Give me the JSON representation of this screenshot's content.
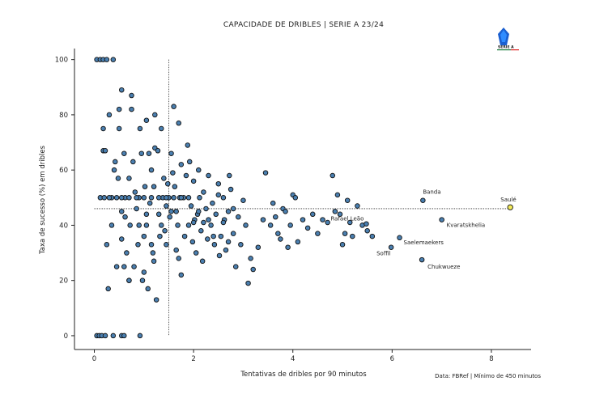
{
  "chart_data": {
    "type": "scatter",
    "title": "CAPACIDADE DE DRIBLES | SERIE A 23/24",
    "xlabel": "Tentativas de dribles por 90 minutos",
    "ylabel": "Taxa de sucesso (%) em dribles",
    "xlim": [
      -0.4,
      8.8
    ],
    "ylim": [
      -5,
      104
    ],
    "xticks": [
      0,
      2,
      4,
      6,
      8
    ],
    "yticks": [
      0,
      20,
      40,
      60,
      80,
      100
    ],
    "reference_lines": {
      "x": 1.5,
      "y": 46
    },
    "highlight": {
      "name": "Saulé",
      "x": 8.38,
      "y": 46.5
    },
    "annotated": [
      {
        "name": "Banda",
        "x": 6.62,
        "y": 49
      },
      {
        "name": "Saulé",
        "x": 8.38,
        "y": 46.5
      },
      {
        "name": "Kvaratskhelia",
        "x": 7.0,
        "y": 42
      },
      {
        "name": "Rafael Leão",
        "x": 5.48,
        "y": 40.5
      },
      {
        "name": "Saelemaekers",
        "x": 6.15,
        "y": 35.5
      },
      {
        "name": "Soffil",
        "x": 5.98,
        "y": 32
      },
      {
        "name": "Chukwueze",
        "x": 6.6,
        "y": 27.5
      }
    ],
    "points": [
      [
        0.05,
        100
      ],
      [
        0.12,
        100
      ],
      [
        0.18,
        100
      ],
      [
        0.25,
        100
      ],
      [
        0.38,
        100
      ],
      [
        0.05,
        0
      ],
      [
        0.1,
        0
      ],
      [
        0.15,
        0
      ],
      [
        0.22,
        0
      ],
      [
        0.38,
        0
      ],
      [
        0.55,
        0
      ],
      [
        0.6,
        0
      ],
      [
        0.92,
        0
      ],
      [
        0.28,
        17
      ],
      [
        0.35,
        40
      ],
      [
        0.35,
        50
      ],
      [
        0.3,
        80
      ],
      [
        0.5,
        82
      ],
      [
        0.45,
        25
      ],
      [
        0.55,
        35
      ],
      [
        0.12,
        50
      ],
      [
        0.18,
        67
      ],
      [
        0.18,
        75
      ],
      [
        0.22,
        67
      ],
      [
        0.25,
        33
      ],
      [
        0.4,
        60
      ],
      [
        0.42,
        63
      ],
      [
        0.48,
        57
      ],
      [
        0.5,
        75
      ],
      [
        0.55,
        45
      ],
      [
        0.55,
        89
      ],
      [
        0.6,
        66
      ],
      [
        0.62,
        50
      ],
      [
        0.62,
        43
      ],
      [
        0.65,
        30
      ],
      [
        0.7,
        20
      ],
      [
        0.7,
        57
      ],
      [
        0.72,
        40
      ],
      [
        0.75,
        82
      ],
      [
        0.75,
        87
      ],
      [
        0.78,
        63
      ],
      [
        0.8,
        25
      ],
      [
        0.82,
        52
      ],
      [
        0.85,
        46
      ],
      [
        0.88,
        33
      ],
      [
        0.9,
        50
      ],
      [
        0.92,
        75
      ],
      [
        0.95,
        66
      ],
      [
        0.97,
        20
      ],
      [
        1.0,
        36
      ],
      [
        1.02,
        54
      ],
      [
        1.05,
        78
      ],
      [
        1.05,
        44
      ],
      [
        1.08,
        17
      ],
      [
        1.1,
        66
      ],
      [
        1.12,
        48
      ],
      [
        1.15,
        60
      ],
      [
        1.18,
        30
      ],
      [
        1.2,
        54
      ],
      [
        1.22,
        80
      ],
      [
        1.22,
        68
      ],
      [
        1.25,
        13
      ],
      [
        1.28,
        67
      ],
      [
        1.3,
        44
      ],
      [
        1.32,
        36
      ],
      [
        1.35,
        75
      ],
      [
        1.38,
        50
      ],
      [
        1.4,
        57
      ],
      [
        1.42,
        38
      ],
      [
        1.45,
        47
      ],
      [
        1.48,
        55
      ],
      [
        1.5,
        50
      ],
      [
        1.52,
        43
      ],
      [
        1.55,
        66
      ],
      [
        1.58,
        59
      ],
      [
        1.6,
        83
      ],
      [
        1.62,
        54
      ],
      [
        1.65,
        45
      ],
      [
        1.68,
        40
      ],
      [
        1.7,
        77
      ],
      [
        1.72,
        50
      ],
      [
        1.75,
        62
      ],
      [
        1.75,
        22
      ],
      [
        1.8,
        50
      ],
      [
        1.82,
        36
      ],
      [
        1.85,
        58
      ],
      [
        1.88,
        69
      ],
      [
        1.9,
        40
      ],
      [
        1.92,
        63
      ],
      [
        1.95,
        47
      ],
      [
        1.98,
        34
      ],
      [
        2.0,
        56
      ],
      [
        2.02,
        42
      ],
      [
        2.05,
        30
      ],
      [
        2.08,
        44
      ],
      [
        2.1,
        60
      ],
      [
        2.12,
        50
      ],
      [
        2.15,
        38
      ],
      [
        2.18,
        27
      ],
      [
        2.2,
        52
      ],
      [
        2.25,
        46
      ],
      [
        2.28,
        35
      ],
      [
        2.3,
        58
      ],
      [
        2.35,
        40
      ],
      [
        2.38,
        48
      ],
      [
        2.42,
        33
      ],
      [
        2.45,
        44
      ],
      [
        2.5,
        55
      ],
      [
        2.52,
        29
      ],
      [
        2.55,
        36
      ],
      [
        2.6,
        50
      ],
      [
        2.62,
        42
      ],
      [
        2.65,
        31
      ],
      [
        2.7,
        45
      ],
      [
        2.72,
        58
      ],
      [
        2.75,
        53
      ],
      [
        2.8,
        37
      ],
      [
        2.85,
        25
      ],
      [
        2.9,
        43
      ],
      [
        2.95,
        33
      ],
      [
        3.0,
        49
      ],
      [
        3.05,
        40
      ],
      [
        3.1,
        19
      ],
      [
        3.15,
        28
      ],
      [
        3.2,
        24
      ],
      [
        3.3,
        32
      ],
      [
        3.4,
        42
      ],
      [
        3.45,
        59
      ],
      [
        3.55,
        40
      ],
      [
        3.6,
        48
      ],
      [
        3.65,
        43
      ],
      [
        3.7,
        37
      ],
      [
        3.75,
        35
      ],
      [
        3.8,
        46
      ],
      [
        3.85,
        45
      ],
      [
        3.9,
        32
      ],
      [
        3.95,
        40
      ],
      [
        4.0,
        51
      ],
      [
        4.05,
        50
      ],
      [
        4.1,
        34
      ],
      [
        4.2,
        42
      ],
      [
        4.3,
        39
      ],
      [
        4.4,
        44
      ],
      [
        4.5,
        37
      ],
      [
        4.6,
        42
      ],
      [
        4.7,
        41
      ],
      [
        4.8,
        58
      ],
      [
        4.85,
        45
      ],
      [
        4.9,
        51
      ],
      [
        4.95,
        44
      ],
      [
        5.0,
        33
      ],
      [
        5.05,
        37
      ],
      [
        5.1,
        49
      ],
      [
        5.15,
        41
      ],
      [
        5.2,
        36
      ],
      [
        5.3,
        47
      ],
      [
        5.4,
        40
      ],
      [
        5.5,
        38
      ],
      [
        5.6,
        36
      ],
      [
        0.2,
        50
      ],
      [
        0.3,
        50
      ],
      [
        0.45,
        50
      ],
      [
        0.55,
        50
      ],
      [
        0.7,
        50
      ],
      [
        0.85,
        50
      ],
      [
        1.0,
        50
      ],
      [
        1.15,
        50
      ],
      [
        1.3,
        50
      ],
      [
        1.45,
        50
      ],
      [
        1.6,
        50
      ],
      [
        1.75,
        50
      ],
      [
        1.9,
        50
      ],
      [
        0.6,
        25
      ],
      [
        0.7,
        20
      ],
      [
        0.9,
        40
      ],
      [
        1.05,
        40
      ],
      [
        1.15,
        33
      ],
      [
        1.35,
        40
      ],
      [
        1.45,
        33
      ],
      [
        1.0,
        23
      ],
      [
        1.2,
        27
      ],
      [
        1.55,
        45
      ],
      [
        1.65,
        31
      ],
      [
        1.7,
        28
      ],
      [
        2.0,
        41
      ],
      [
        2.1,
        45
      ],
      [
        2.2,
        41
      ],
      [
        2.3,
        42
      ],
      [
        2.4,
        36
      ],
      [
        2.5,
        51
      ],
      [
        2.6,
        41
      ],
      [
        2.7,
        34
      ],
      [
        2.8,
        46
      ]
    ]
  }
}
